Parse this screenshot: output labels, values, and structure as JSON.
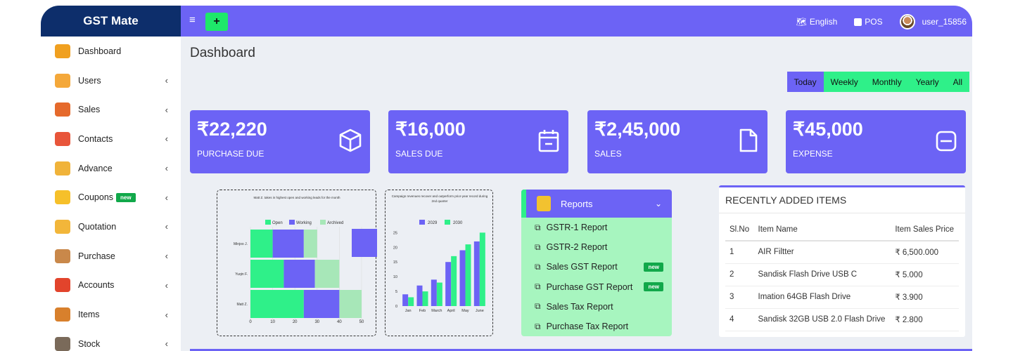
{
  "brand": "GST Mate",
  "topbar": {
    "menu_icon": "≡",
    "add_label": "+",
    "language": "English",
    "pos": "POS",
    "user": "user_15856"
  },
  "sidebar": {
    "items": [
      {
        "label": "Dashboard",
        "icon": "dashboard-icon",
        "color": "#f0a020",
        "chev": false
      },
      {
        "label": "Users",
        "icon": "users-icon",
        "color": "#f4a83a",
        "chev": true
      },
      {
        "label": "Sales",
        "icon": "cart-icon",
        "color": "#e56a2c",
        "chev": true
      },
      {
        "label": "Contacts",
        "icon": "contacts-icon",
        "color": "#e8553a",
        "chev": true
      },
      {
        "label": "Advance",
        "icon": "advance-icon",
        "color": "#f0b33a",
        "chev": true
      },
      {
        "label": "Coupons",
        "icon": "coupon-icon",
        "color": "#f6c02a",
        "chev": true,
        "badge": "new"
      },
      {
        "label": "Quotation",
        "icon": "quotation-icon",
        "color": "#f2b63a",
        "chev": true
      },
      {
        "label": "Purchase",
        "icon": "purchase-icon",
        "color": "#c9884a",
        "chev": true
      },
      {
        "label": "Accounts",
        "icon": "accounts-icon",
        "color": "#e2442c",
        "chev": true
      },
      {
        "label": "Items",
        "icon": "items-icon",
        "color": "#d8802c",
        "chev": true
      },
      {
        "label": "Stock",
        "icon": "stock-icon",
        "color": "#7a6a5a",
        "chev": true
      }
    ]
  },
  "page_title": "Dashboard",
  "period_filter": {
    "options": [
      "Today",
      "Weekly",
      "Monthly",
      "Yearly",
      "All"
    ],
    "selected": "Today"
  },
  "stats": [
    {
      "value": "₹22,220",
      "label": "PURCHASE DUE",
      "icon": "box-icon"
    },
    {
      "value": "₹16,000",
      "label": "SALES DUE",
      "icon": "calendar-icon"
    },
    {
      "value": "₹2,45,000",
      "label": "SALES",
      "icon": "file-icon"
    },
    {
      "value": "₹45,000",
      "label": "EXPENSE",
      "icon": "minus-square-icon"
    }
  ],
  "chart_data": [
    {
      "type": "bar",
      "orientation": "horizontal",
      "stacked": true,
      "title": "Matt Z. takes in highest open and working leads for the month",
      "categories": [
        "Minjoo J.",
        "Yuqin F.",
        "Matt Z."
      ],
      "series": [
        {
          "name": "Open",
          "values": [
            10,
            15,
            24
          ],
          "color": "#2ff089"
        },
        {
          "name": "Working",
          "values": [
            14,
            14,
            16
          ],
          "color": "#6c63f5"
        },
        {
          "name": "Archived",
          "values": [
            6,
            11,
            10
          ],
          "color": "#a7e7b8"
        }
      ],
      "xticks": [
        0,
        10,
        20,
        30,
        40,
        50
      ],
      "xlim": [
        0,
        50
      ]
    },
    {
      "type": "bar",
      "title": "Campaign revenues recover and outperform prior-year record during 2nd quarter",
      "categories": [
        "Jan",
        "Feb",
        "March",
        "April",
        "May",
        "June"
      ],
      "series": [
        {
          "name": "2029",
          "values": [
            4,
            7,
            9,
            15,
            19,
            22
          ],
          "color": "#6c63f5"
        },
        {
          "name": "2030",
          "values": [
            3,
            5,
            8,
            17,
            21,
            25
          ],
          "color": "#2ff089"
        }
      ],
      "yticks": [
        0,
        5,
        10,
        15,
        20,
        25
      ],
      "ylim": [
        0,
        27
      ]
    }
  ],
  "reports": {
    "title": "Reports",
    "items": [
      {
        "label": "GSTR-1 Report",
        "badge": ""
      },
      {
        "label": "GSTR-2 Report",
        "badge": ""
      },
      {
        "label": "Sales GST Report",
        "badge": "new"
      },
      {
        "label": "Purchase GST Report",
        "badge": "new"
      },
      {
        "label": "Sales Tax Report",
        "badge": ""
      },
      {
        "label": "Purchase Tax Report",
        "badge": ""
      }
    ]
  },
  "recent_items": {
    "title": "RECENTLY ADDED ITEMS",
    "columns": [
      "Sl.No",
      "Item Name",
      "Item Sales Price"
    ],
    "rows": [
      [
        "1",
        "AIR Filtter",
        "₹ 6,500.000"
      ],
      [
        "2",
        "Sandisk Flash Drive USB C",
        "₹ 5.000"
      ],
      [
        "3",
        "Imation 64GB Flash Drive",
        "₹ 3.900"
      ],
      [
        "4",
        "Sandisk 32GB USB 2.0 Flash Drive",
        "₹ 2.800"
      ]
    ]
  }
}
